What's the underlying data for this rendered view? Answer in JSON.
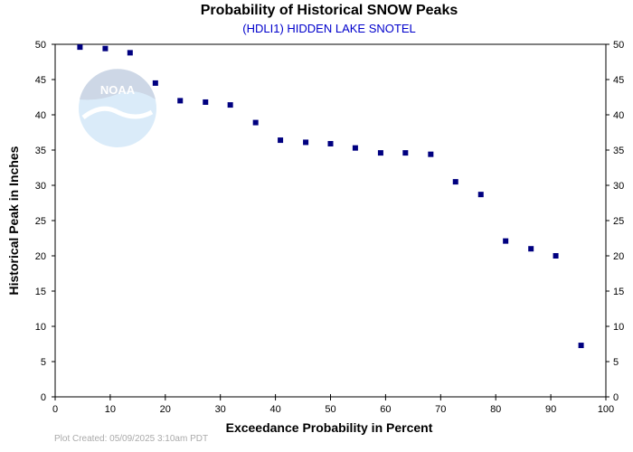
{
  "chart_data": {
    "type": "scatter",
    "title": "Probability of Historical SNOW Peaks",
    "subtitle": "(HDLI1) HIDDEN LAKE SNOTEL",
    "xlabel": "Exceedance Probability in Percent",
    "ylabel": "Historical Peak in Inches",
    "xlim": [
      0,
      100
    ],
    "ylim": [
      0,
      50
    ],
    "x_ticks": [
      0,
      10,
      20,
      30,
      40,
      50,
      60,
      70,
      80,
      90,
      100
    ],
    "y_ticks": [
      0,
      5,
      10,
      15,
      20,
      25,
      30,
      35,
      40,
      45,
      50
    ],
    "grid": false,
    "legend": "none",
    "marker_color": "#000080",
    "points": [
      {
        "x": 4.5,
        "y": 49.6
      },
      {
        "x": 9.1,
        "y": 49.4
      },
      {
        "x": 13.6,
        "y": 48.8
      },
      {
        "x": 18.2,
        "y": 44.5
      },
      {
        "x": 22.7,
        "y": 42.0
      },
      {
        "x": 27.3,
        "y": 41.8
      },
      {
        "x": 31.8,
        "y": 41.4
      },
      {
        "x": 36.4,
        "y": 38.9
      },
      {
        "x": 40.9,
        "y": 36.4
      },
      {
        "x": 45.5,
        "y": 36.1
      },
      {
        "x": 50.0,
        "y": 35.9
      },
      {
        "x": 54.5,
        "y": 35.3
      },
      {
        "x": 59.1,
        "y": 34.6
      },
      {
        "x": 63.6,
        "y": 34.6
      },
      {
        "x": 68.2,
        "y": 34.4
      },
      {
        "x": 72.7,
        "y": 30.5
      },
      {
        "x": 77.3,
        "y": 28.7
      },
      {
        "x": 81.8,
        "y": 22.1
      },
      {
        "x": 86.4,
        "y": 21.0
      },
      {
        "x": 90.9,
        "y": 20.0
      },
      {
        "x": 95.5,
        "y": 7.3
      }
    ]
  },
  "footer": {
    "plot_created": "Plot Created: 05/09/2025 3:10am PDT"
  },
  "logo": {
    "text": "NOAA"
  }
}
